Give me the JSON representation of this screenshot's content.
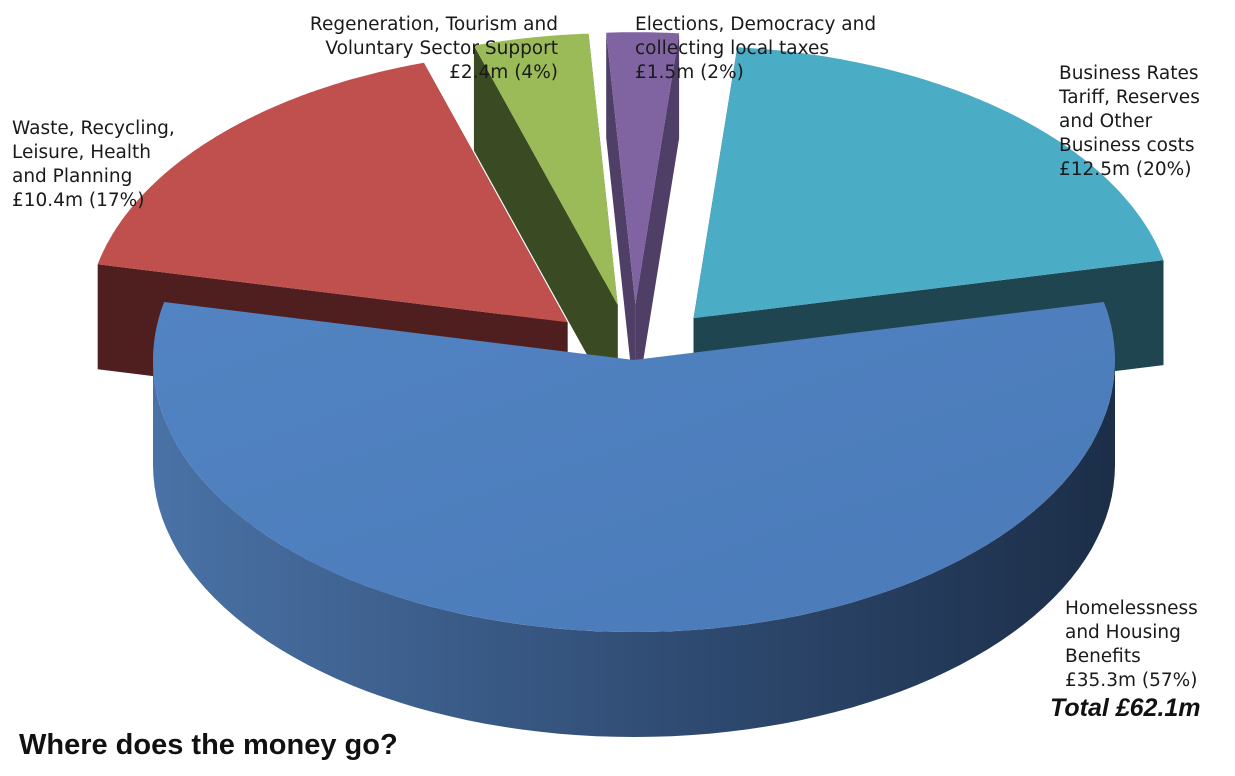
{
  "chart_data": {
    "type": "pie",
    "title": "Where does the money go?",
    "total_label": "Total £62.1m",
    "slices": [
      {
        "name": "Homelessness and Housing Benefits",
        "value": 35.3,
        "percent": 57,
        "label": "Homelessness\nand Housing\nBenefits\n£35.3m (57%)",
        "color": "#4f81bd",
        "side_color": "#2e4a6d",
        "exploded": false
      },
      {
        "name": "Waste, Recycling, Leisure, Health and Planning",
        "value": 10.4,
        "percent": 17,
        "label": "Waste, Recycling,\nLeisure, Health\nand Planning\n£10.4m  (17%)",
        "color": "#c0504d",
        "side_color": "#4f1f1f",
        "exploded": true
      },
      {
        "name": "Regeneration, Tourism and Voluntary Sector Support",
        "value": 2.4,
        "percent": 4,
        "label": "Regeneration, Tourism and\nVoluntary Sector Support\n£2.4m (4%)",
        "color": "#9bbb59",
        "side_color": "#3a4a22",
        "exploded": true
      },
      {
        "name": "Elections, Democracy and collecting local taxes",
        "value": 1.5,
        "percent": 2,
        "label": "Elections, Democracy and\ncollecting local taxes\n£1.5m (2%)",
        "color": "#8064a2",
        "side_color": "#4f3f66",
        "exploded": true
      },
      {
        "name": "Business Rates Tariff, Reserves and Other Business costs",
        "value": 12.5,
        "percent": 20,
        "label": "Business Rates\nTariff, Reserves\nand Other\nBusiness costs\n£12.5m (20%)",
        "color": "#4bacc6",
        "side_color": "#1f4550",
        "exploded": true
      }
    ]
  }
}
